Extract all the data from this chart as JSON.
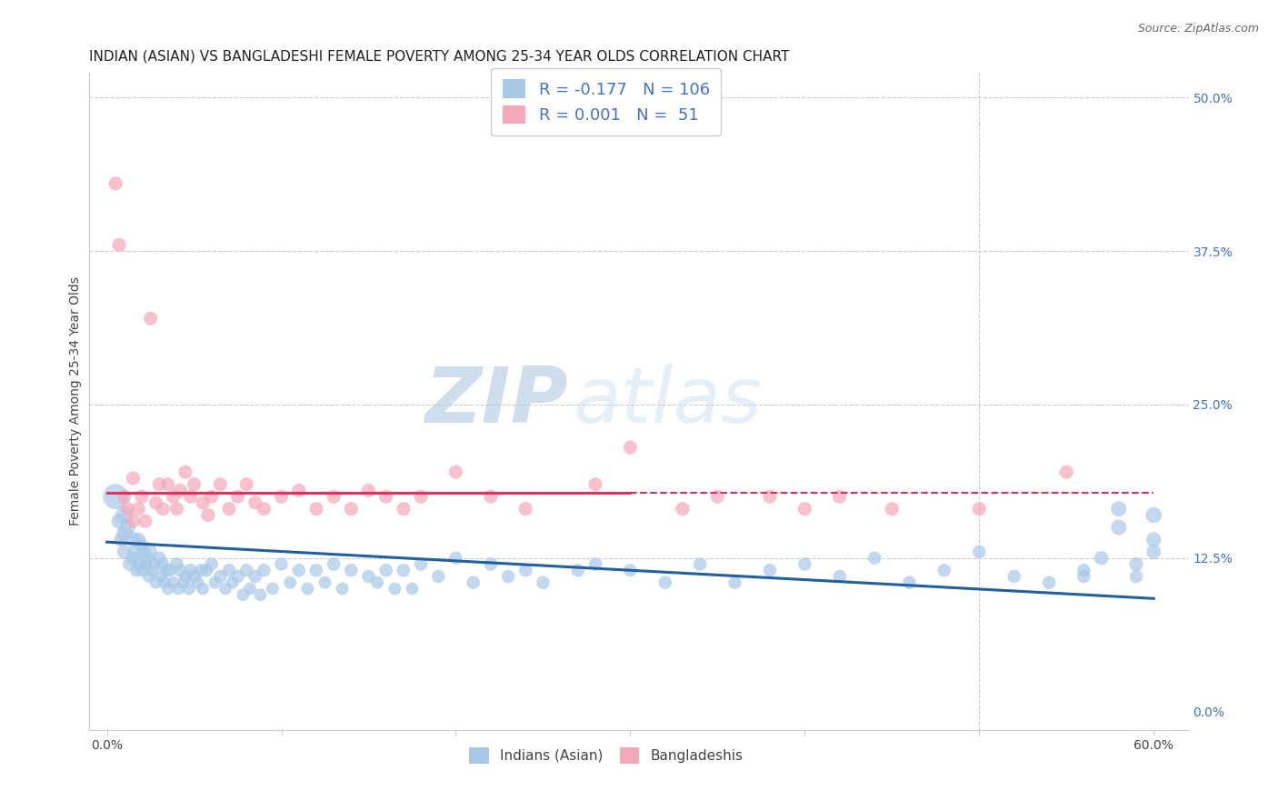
{
  "title": "INDIAN (ASIAN) VS BANGLADESHI FEMALE POVERTY AMONG 25-34 YEAR OLDS CORRELATION CHART",
  "source": "Source: ZipAtlas.com",
  "ylabel": "Female Poverty Among 25-34 Year Olds",
  "xlim": [
    0.0,
    0.6
  ],
  "ylim": [
    0.0,
    0.5
  ],
  "yticks_right": [
    0.0,
    0.125,
    0.25,
    0.375,
    0.5
  ],
  "ytick_right_labels": [
    "0.0%",
    "12.5%",
    "25.0%",
    "37.5%",
    "50.0%"
  ],
  "grid_color": "#cccccc",
  "background_color": "#ffffff",
  "blue_color": "#a8c8e8",
  "pink_color": "#f4a8b8",
  "blue_line_color": "#2060a0",
  "pink_line_color": "#e03060",
  "legend_blue_R": "-0.177",
  "legend_blue_N": "106",
  "legend_pink_R": "0.001",
  "legend_pink_N": "51",
  "watermark_ZIP": "ZIP",
  "watermark_atlas": "atlas",
  "blue_line_x": [
    0.0,
    0.6
  ],
  "blue_line_y": [
    0.138,
    0.092
  ],
  "pink_line_y": 0.178,
  "title_fontsize": 11,
  "label_fontsize": 10,
  "blue_x": [
    0.005,
    0.007,
    0.008,
    0.01,
    0.01,
    0.01,
    0.012,
    0.013,
    0.015,
    0.015,
    0.016,
    0.017,
    0.018,
    0.019,
    0.02,
    0.02,
    0.021,
    0.022,
    0.023,
    0.024,
    0.025,
    0.026,
    0.027,
    0.028,
    0.03,
    0.031,
    0.032,
    0.033,
    0.034,
    0.035,
    0.036,
    0.038,
    0.04,
    0.041,
    0.042,
    0.044,
    0.045,
    0.047,
    0.048,
    0.05,
    0.052,
    0.054,
    0.055,
    0.057,
    0.06,
    0.062,
    0.065,
    0.068,
    0.07,
    0.072,
    0.075,
    0.078,
    0.08,
    0.082,
    0.085,
    0.088,
    0.09,
    0.095,
    0.1,
    0.105,
    0.11,
    0.115,
    0.12,
    0.125,
    0.13,
    0.135,
    0.14,
    0.15,
    0.155,
    0.16,
    0.165,
    0.17,
    0.175,
    0.18,
    0.19,
    0.2,
    0.21,
    0.22,
    0.23,
    0.24,
    0.25,
    0.27,
    0.28,
    0.3,
    0.32,
    0.34,
    0.36,
    0.38,
    0.4,
    0.42,
    0.44,
    0.46,
    0.48,
    0.5,
    0.52,
    0.54,
    0.56,
    0.58,
    0.59,
    0.6,
    0.6,
    0.6,
    0.59,
    0.58,
    0.57,
    0.56
  ],
  "blue_y": [
    0.175,
    0.155,
    0.14,
    0.16,
    0.145,
    0.13,
    0.15,
    0.12,
    0.14,
    0.125,
    0.13,
    0.115,
    0.14,
    0.12,
    0.135,
    0.115,
    0.13,
    0.12,
    0.125,
    0.11,
    0.13,
    0.115,
    0.12,
    0.105,
    0.125,
    0.11,
    0.12,
    0.105,
    0.115,
    0.1,
    0.115,
    0.105,
    0.12,
    0.1,
    0.115,
    0.105,
    0.11,
    0.1,
    0.115,
    0.11,
    0.105,
    0.115,
    0.1,
    0.115,
    0.12,
    0.105,
    0.11,
    0.1,
    0.115,
    0.105,
    0.11,
    0.095,
    0.115,
    0.1,
    0.11,
    0.095,
    0.115,
    0.1,
    0.12,
    0.105,
    0.115,
    0.1,
    0.115,
    0.105,
    0.12,
    0.1,
    0.115,
    0.11,
    0.105,
    0.115,
    0.1,
    0.115,
    0.1,
    0.12,
    0.11,
    0.125,
    0.105,
    0.12,
    0.11,
    0.115,
    0.105,
    0.115,
    0.12,
    0.115,
    0.105,
    0.12,
    0.105,
    0.115,
    0.12,
    0.11,
    0.125,
    0.105,
    0.115,
    0.13,
    0.11,
    0.105,
    0.115,
    0.165,
    0.11,
    0.13,
    0.14,
    0.16,
    0.12,
    0.15,
    0.125,
    0.11
  ],
  "blue_s": [
    400,
    150,
    120,
    200,
    160,
    130,
    150,
    120,
    140,
    110,
    130,
    110,
    130,
    110,
    130,
    110,
    120,
    110,
    120,
    100,
    120,
    110,
    115,
    100,
    115,
    100,
    110,
    100,
    110,
    100,
    110,
    100,
    110,
    100,
    110,
    100,
    110,
    100,
    110,
    110,
    100,
    110,
    100,
    110,
    110,
    100,
    110,
    100,
    110,
    100,
    110,
    100,
    110,
    100,
    110,
    100,
    110,
    100,
    110,
    100,
    110,
    100,
    110,
    100,
    110,
    100,
    110,
    110,
    100,
    110,
    100,
    110,
    100,
    110,
    110,
    110,
    110,
    110,
    110,
    110,
    110,
    110,
    110,
    110,
    110,
    110,
    110,
    110,
    110,
    110,
    110,
    110,
    110,
    110,
    110,
    110,
    110,
    150,
    110,
    130,
    140,
    160,
    120,
    150,
    125,
    110
  ],
  "pink_x": [
    0.005,
    0.007,
    0.01,
    0.012,
    0.015,
    0.015,
    0.018,
    0.02,
    0.022,
    0.025,
    0.028,
    0.03,
    0.032,
    0.035,
    0.038,
    0.04,
    0.042,
    0.045,
    0.048,
    0.05,
    0.055,
    0.058,
    0.06,
    0.065,
    0.07,
    0.075,
    0.08,
    0.085,
    0.09,
    0.1,
    0.11,
    0.12,
    0.13,
    0.14,
    0.15,
    0.16,
    0.17,
    0.18,
    0.2,
    0.22,
    0.24,
    0.28,
    0.3,
    0.33,
    0.35,
    0.38,
    0.4,
    0.42,
    0.45,
    0.5,
    0.55
  ],
  "pink_y": [
    0.43,
    0.38,
    0.175,
    0.165,
    0.19,
    0.155,
    0.165,
    0.175,
    0.155,
    0.32,
    0.17,
    0.185,
    0.165,
    0.185,
    0.175,
    0.165,
    0.18,
    0.195,
    0.175,
    0.185,
    0.17,
    0.16,
    0.175,
    0.185,
    0.165,
    0.175,
    0.185,
    0.17,
    0.165,
    0.175,
    0.18,
    0.165,
    0.175,
    0.165,
    0.18,
    0.175,
    0.165,
    0.175,
    0.195,
    0.175,
    0.165,
    0.185,
    0.215,
    0.165,
    0.175,
    0.175,
    0.165,
    0.175,
    0.165,
    0.165,
    0.195
  ],
  "pink_s": [
    120,
    120,
    120,
    120,
    120,
    120,
    120,
    120,
    120,
    120,
    120,
    120,
    120,
    120,
    120,
    120,
    120,
    120,
    120,
    120,
    120,
    120,
    120,
    120,
    120,
    120,
    120,
    120,
    120,
    120,
    120,
    120,
    120,
    120,
    120,
    120,
    120,
    120,
    120,
    120,
    120,
    120,
    120,
    120,
    120,
    120,
    120,
    120,
    120,
    120,
    120
  ]
}
